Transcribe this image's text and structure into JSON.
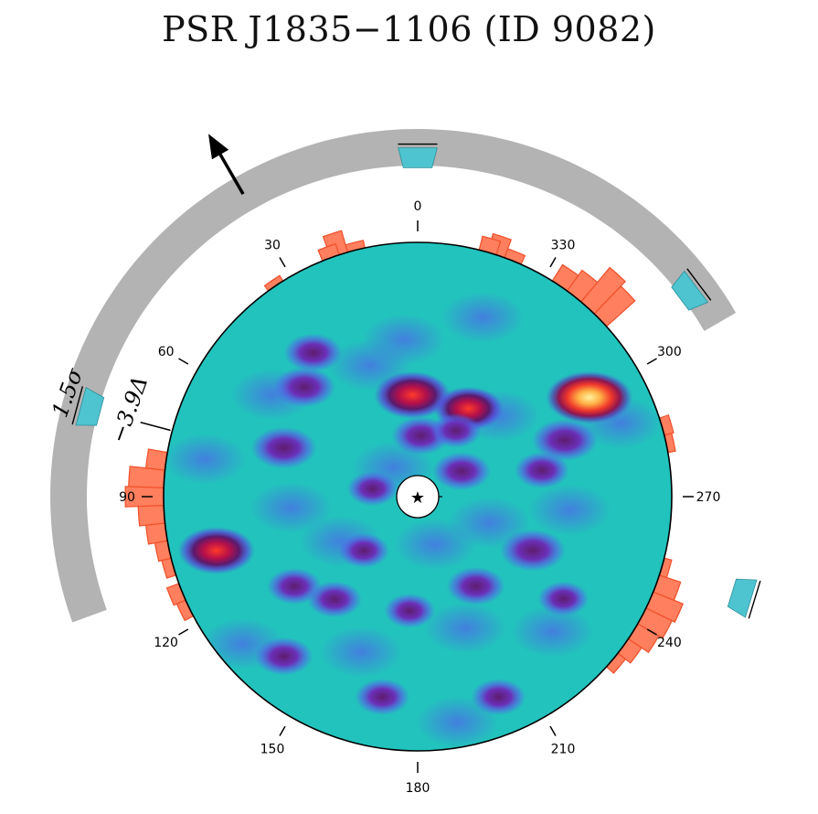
{
  "title": "PSR J1835−1106 (ID 9082)",
  "chart_data": {
    "type": "polar-map",
    "angle_ticks": [
      "0",
      "30",
      "60",
      "90",
      "120",
      "150",
      "180",
      "210",
      "240",
      "270",
      "300",
      "330"
    ],
    "angle_tick_values": [
      0,
      30,
      60,
      90,
      120,
      150,
      180,
      210,
      240,
      270,
      300,
      330
    ],
    "annotations": {
      "sigma_label": "1.5σ",
      "delta_label": "−3.9Δ"
    },
    "center_marker": "★",
    "arrow_angle_deg": 30,
    "gray_arc_deg": [
      -60,
      110
    ],
    "histogram": {
      "bin_deg": 4,
      "comment_unit": "relative excess",
      "bins": [
        {
          "a": 354,
          "v": 0.0
        },
        {
          "a": 358,
          "v": 0.0
        },
        {
          "a": 2,
          "v": 0.0
        },
        {
          "a": 6,
          "v": 0.0
        },
        {
          "a": 14,
          "v": 0.12
        },
        {
          "a": 18,
          "v": 0.35
        },
        {
          "a": 20,
          "v": 0.18
        },
        {
          "a": 34,
          "v": 0.1
        },
        {
          "a": 338,
          "v": 0.15
        },
        {
          "a": 342,
          "v": 0.3
        },
        {
          "a": 344,
          "v": 0.22
        },
        {
          "a": 314,
          "v": 0.6
        },
        {
          "a": 318,
          "v": 0.7
        },
        {
          "a": 322,
          "v": 0.4
        },
        {
          "a": 326,
          "v": 0.3
        },
        {
          "a": 282,
          "v": 0.12
        },
        {
          "a": 286,
          "v": 0.15
        },
        {
          "a": 90,
          "v": 0.6
        },
        {
          "a": 86,
          "v": 0.55
        },
        {
          "a": 94,
          "v": 0.4
        },
        {
          "a": 98,
          "v": 0.3
        },
        {
          "a": 102,
          "v": 0.2
        },
        {
          "a": 82,
          "v": 0.3
        },
        {
          "a": 106,
          "v": 0.15
        },
        {
          "a": 112,
          "v": 0.2
        },
        {
          "a": 116,
          "v": 0.15
        },
        {
          "a": 246,
          "v": 0.5
        },
        {
          "a": 242,
          "v": 0.45
        },
        {
          "a": 238,
          "v": 0.38
        },
        {
          "a": 250,
          "v": 0.35
        },
        {
          "a": 234,
          "v": 0.25
        },
        {
          "a": 230,
          "v": 0.15
        },
        {
          "a": 254,
          "v": 0.12
        }
      ]
    },
    "cyan_markers_deg": [
      0,
      307,
      75,
      253
    ],
    "skymap_hotspots": [
      {
        "r": 0.4,
        "a": 3,
        "s": 1.0
      },
      {
        "r": 0.4,
        "a": 330,
        "s": 0.8
      },
      {
        "r": 0.78,
        "a": 300,
        "s": 1.3
      },
      {
        "r": 0.62,
        "a": 291,
        "s": 0.7
      },
      {
        "r": 0.24,
        "a": 357,
        "s": 0.5
      },
      {
        "r": 0.3,
        "a": 330,
        "s": 0.3
      },
      {
        "r": 0.62,
        "a": 46,
        "s": 0.6
      },
      {
        "r": 0.56,
        "a": 70,
        "s": 0.7
      },
      {
        "r": 0.5,
        "a": 282,
        "s": 0.4
      },
      {
        "r": 0.2,
        "a": 300,
        "s": 0.5
      },
      {
        "r": 0.18,
        "a": 80,
        "s": 0.3
      },
      {
        "r": 0.82,
        "a": 105,
        "s": 1.0
      },
      {
        "r": 0.6,
        "a": 126,
        "s": 0.4
      },
      {
        "r": 0.52,
        "a": 141,
        "s": 0.4
      },
      {
        "r": 0.45,
        "a": 176,
        "s": 0.3
      },
      {
        "r": 0.42,
        "a": 213,
        "s": 0.5
      },
      {
        "r": 0.5,
        "a": 245,
        "s": 0.7
      },
      {
        "r": 0.7,
        "a": 235,
        "s": 0.3
      },
      {
        "r": 0.82,
        "a": 140,
        "s": 0.5
      },
      {
        "r": 0.8,
        "a": 170,
        "s": 0.4
      },
      {
        "r": 0.85,
        "a": 202,
        "s": 0.4
      },
      {
        "r": 0.3,
        "a": 135,
        "s": 0.3
      },
      {
        "r": 0.7,
        "a": 36,
        "s": 0.5
      }
    ]
  }
}
